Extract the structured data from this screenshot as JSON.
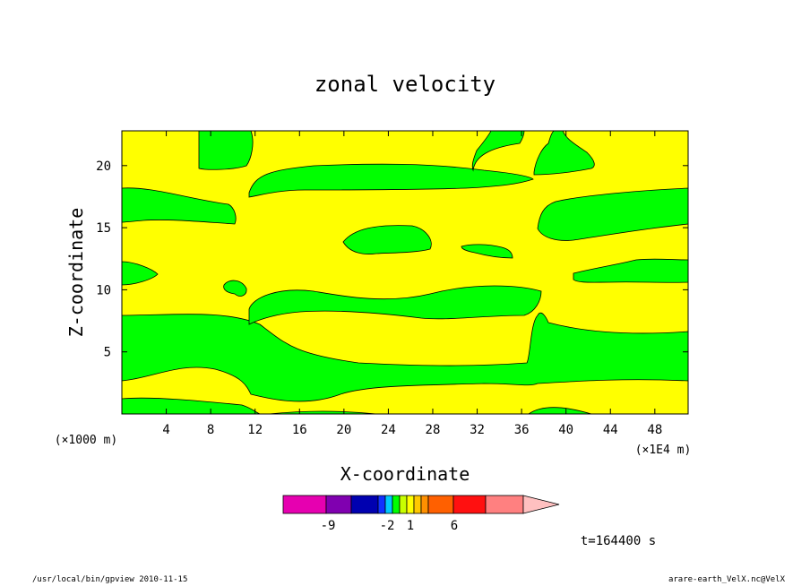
{
  "chart_data": {
    "type": "heatmap",
    "title": "zonal velocity",
    "xlabel": "X-coordinate",
    "ylabel": "Z-coordinate",
    "x_unit": "(×1E4 m)",
    "y_unit": "(×1000 m)",
    "xlim": [
      0,
      51
    ],
    "ylim": [
      0,
      22.8
    ],
    "x_ticks": [
      4,
      8,
      12,
      16,
      20,
      24,
      28,
      32,
      36,
      40,
      44,
      48
    ],
    "y_ticks": [
      5,
      10,
      15,
      20
    ],
    "colorbar": {
      "colors": [
        "#e600b0",
        "#8000b0",
        "#0000b0",
        "#1030ff",
        "#00c8ff",
        "#00ff00",
        "#c8ff00",
        "#ffff00",
        "#ffc800",
        "#ff9000",
        "#ff6000",
        "#ff1010",
        "#ff8080",
        "#ffc0c0"
      ],
      "tick_labels": [
        "-9",
        "-2",
        "1",
        "6"
      ]
    },
    "fill_colors": {
      "positive": "#ffff00",
      "negative": "#00ff00"
    },
    "time_label": "t=164400 s"
  },
  "footer": {
    "left": "/usr/local/bin/gpview  2010-11-15",
    "right": "arare-earth_VelX.nc@VelX"
  }
}
